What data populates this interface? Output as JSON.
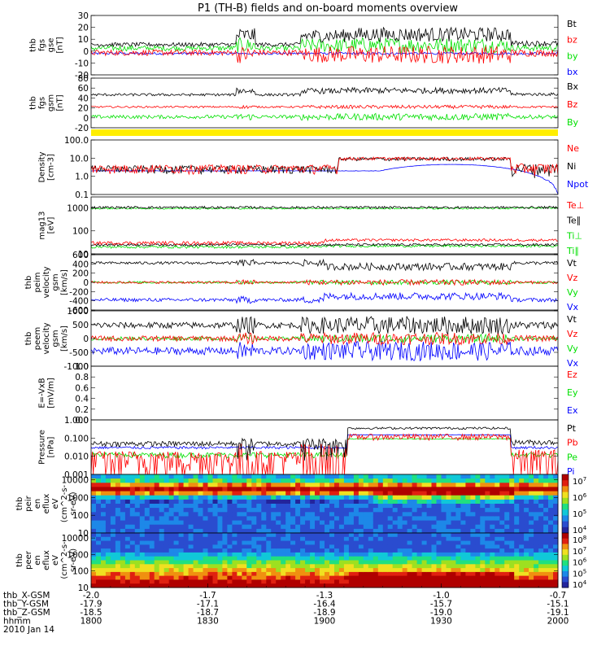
{
  "title": "P1 (TH-B) fields and on-board moments overview",
  "colors": {
    "black": "#000000",
    "red": "#ff0000",
    "green": "#00e000",
    "blue": "#0000ff",
    "yellow": "#ffee00"
  },
  "panels": [
    {
      "id": "fgs-gse",
      "ylabel": [
        "thb",
        "fgs",
        "gse",
        "[nT]"
      ],
      "yticks": [
        "30",
        "20",
        "10",
        "0",
        "-10",
        "-20"
      ],
      "ylim": [
        -20,
        30
      ],
      "legend": [
        {
          "label": "Bt",
          "color": "black"
        },
        {
          "label": "bz",
          "color": "red"
        },
        {
          "label": "by",
          "color": "green"
        },
        {
          "label": "bx",
          "color": "blue"
        }
      ]
    },
    {
      "id": "fgs-gsm",
      "ylabel": [
        "thb",
        "fgs",
        "gsm",
        "[nT]"
      ],
      "yticks": [
        "80",
        "60",
        "40",
        "20",
        "0",
        "-20"
      ],
      "ylim": [
        -20,
        80
      ],
      "legend": [
        {
          "label": "Bx",
          "color": "black"
        },
        {
          "label": "Bz",
          "color": "red"
        },
        {
          "label": "By",
          "color": "green"
        }
      ]
    },
    {
      "id": "density",
      "ylabel": [
        "Density",
        "[cm-3]"
      ],
      "yticks": [
        "100.0",
        "10.0",
        "1.0",
        "0.1"
      ],
      "ylim": [
        0.1,
        100
      ],
      "log": true,
      "legend": [
        {
          "label": "Ne",
          "color": "red"
        },
        {
          "label": "Ni",
          "color": "black"
        },
        {
          "label": "Npot",
          "color": "blue"
        }
      ]
    },
    {
      "id": "temperature",
      "ylabel": [
        "mag13",
        "[eV]"
      ],
      "yticks": [
        "1000",
        "100",
        "10"
      ],
      "ylim": [
        10,
        3000
      ],
      "log": true,
      "legend": [
        {
          "label": "Te⊥",
          "color": "red"
        },
        {
          "label": "Te∥",
          "color": "black"
        },
        {
          "label": "Ti⊥",
          "color": "green"
        },
        {
          "label": "Ti∥",
          "color": "green"
        }
      ]
    },
    {
      "id": "peim-velocity",
      "ylabel": [
        "thb",
        "peim",
        "velocity",
        "gsm",
        "[km/s]"
      ],
      "yticks": [
        "600",
        "400",
        "200",
        "0",
        "-200",
        "-400",
        "-600"
      ],
      "ylim": [
        -600,
        600
      ],
      "legend": [
        {
          "label": "Vt",
          "color": "black"
        },
        {
          "label": "Vz",
          "color": "red"
        },
        {
          "label": "Vy",
          "color": "green"
        },
        {
          "label": "Vx",
          "color": "blue"
        }
      ]
    },
    {
      "id": "peem-velocity",
      "ylabel": [
        "thb",
        "peem",
        "velocity",
        "gsm",
        "[km/s]"
      ],
      "yticks": [
        "1000",
        "500",
        "0",
        "-500",
        "-1000"
      ],
      "ylim": [
        -1000,
        1000
      ],
      "legend": [
        {
          "label": "Vt",
          "color": "black"
        },
        {
          "label": "Vz",
          "color": "red"
        },
        {
          "label": "Vy",
          "color": "green"
        },
        {
          "label": "Vx",
          "color": "blue"
        }
      ]
    },
    {
      "id": "efield",
      "ylabel": [
        "E=-VxB",
        "[mV/m]"
      ],
      "yticks": [
        "1.0",
        "0.8",
        "0.6",
        "0.4",
        "0.2",
        "0.0"
      ],
      "ylim": [
        0,
        1
      ],
      "legend": [
        {
          "label": "Ez",
          "color": "red"
        },
        {
          "label": "Ey",
          "color": "green"
        },
        {
          "label": "Ex",
          "color": "blue"
        }
      ]
    },
    {
      "id": "pressure",
      "ylabel": [
        "Pressure",
        "[nPa]"
      ],
      "yticks": [
        "1.000",
        "0.100",
        "0.010",
        "0.001"
      ],
      "ylim": [
        0.001,
        1
      ],
      "log": true,
      "legend": [
        {
          "label": "Pt",
          "color": "black"
        },
        {
          "label": "Pb",
          "color": "red"
        },
        {
          "label": "Pe",
          "color": "green"
        },
        {
          "label": "Pi",
          "color": "blue"
        }
      ]
    },
    {
      "id": "peir-spec",
      "ylabel": [
        "thb",
        "peir",
        "en",
        "eflux",
        "eV",
        "(cm^2-s-",
        "sr-eV)"
      ],
      "yticks": [
        "10000",
        "1000",
        "100",
        "10"
      ],
      "ylim": [
        10,
        20000
      ],
      "log": true,
      "colorbar": [
        "10^7",
        "10^6",
        "10^5",
        "10^4"
      ]
    },
    {
      "id": "peer-spec",
      "ylabel": [
        "thb",
        "peer",
        "en",
        "eflux",
        "eV",
        "(cm^2-s-",
        "sr-eV)"
      ],
      "yticks": [
        "10000",
        "1000",
        "100",
        "10"
      ],
      "ylim": [
        10,
        20000
      ],
      "log": true,
      "colorbar": [
        "10^8",
        "10^7",
        "10^6",
        "10^5",
        "10^4"
      ]
    }
  ],
  "xaxis": {
    "rows": [
      {
        "label": "thb_X-GSM",
        "values": [
          "-2.0",
          "-1.7",
          "-1.3",
          "-1.0",
          "-0.7"
        ]
      },
      {
        "label": "thb_Y-GSM",
        "values": [
          "-17.9",
          "-17.1",
          "-16.4",
          "-15.7",
          "-15.1"
        ]
      },
      {
        "label": "thb_Z-GSM",
        "values": [
          "-18.5",
          "-18.7",
          "-18.9",
          "-19.0",
          "-19.1"
        ]
      },
      {
        "label": "hhmm",
        "values": [
          "1800",
          "1830",
          "1900",
          "1930",
          "2000"
        ]
      }
    ],
    "date": "2010 Jan 14"
  },
  "chart_data": {
    "type": "line",
    "title": "P1 (TH-B) fields and on-board moments overview",
    "x": [
      "1800",
      "1830",
      "1900",
      "1930",
      "2000"
    ],
    "xlabel": "hhmm",
    "series": [
      {
        "name": "Bt",
        "values": [
          5,
          4,
          10,
          20,
          8
        ]
      },
      {
        "name": "Bx",
        "values": [
          45,
          43,
          48,
          58,
          50
        ]
      },
      {
        "name": "Bz",
        "values": [
          22,
          21,
          22,
          25,
          22
        ]
      },
      {
        "name": "Ne",
        "values": [
          2.5,
          3,
          4,
          9,
          3
        ]
      },
      {
        "name": "Npot",
        "values": [
          2,
          2,
          2.2,
          3,
          2.5
        ]
      },
      {
        "name": "Te∥",
        "values": [
          1000,
          1000,
          1000,
          1000,
          1000
        ]
      },
      {
        "name": "Ti∥",
        "values": [
          25,
          28,
          35,
          30,
          25
        ]
      },
      {
        "name": "Vt",
        "values": [
          400,
          380,
          250,
          400,
          420
        ]
      },
      {
        "name": "Vx",
        "values": [
          -380,
          -330,
          -220,
          -330,
          -380
        ]
      },
      {
        "name": "Pt",
        "values": [
          0.08,
          0.08,
          0.15,
          0.35,
          0.06
        ]
      },
      {
        "name": "Pi",
        "values": [
          0.04,
          0.04,
          0.06,
          0.12,
          0.04
        ]
      }
    ]
  }
}
